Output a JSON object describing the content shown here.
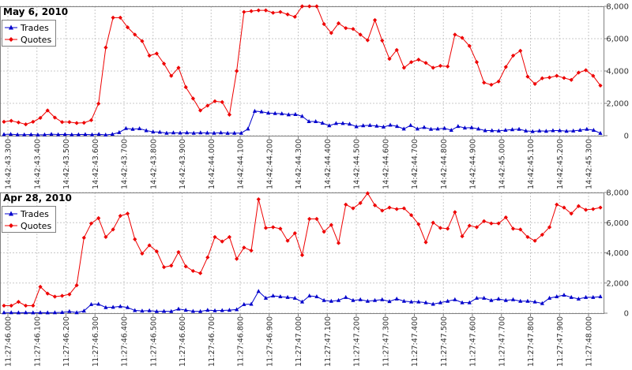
{
  "chart_data": [
    {
      "type": "line",
      "title": "May 6, 2010",
      "xlabel": "",
      "ylabel": "",
      "ylim": [
        0,
        8000
      ],
      "yticks": [
        0,
        2000,
        4000,
        6000,
        8000
      ],
      "ytick_labels": [
        "0",
        "2,000",
        "4,000",
        "6,000",
        "8,000"
      ],
      "xtick_labels": [
        "14:42:43.300",
        "14:42:43.400",
        "14:42:43.500",
        "14:42:43.600",
        "14:42:43.700",
        "14:42:43.800",
        "14:42:43.900",
        "14:42:44.000",
        "14:42:44.100",
        "14:42:44.200",
        "14:42:44.300",
        "14:42:44.400",
        "14:42:44.500",
        "14:42:44.600",
        "14:42:44.700",
        "14:42:44.800",
        "14:42:44.900",
        "14:42:45.000",
        "14:42:45.100",
        "14:42:45.200",
        "14:42:45.300"
      ],
      "grid": true,
      "legend": "top-left",
      "series": [
        {
          "name": "Trades",
          "color": "#0000cc",
          "marker": "triangle",
          "values": [
            80,
            90,
            60,
            60,
            70,
            50,
            60,
            90,
            70,
            80,
            60,
            70,
            80,
            60,
            90,
            50,
            90,
            200,
            450,
            400,
            440,
            320,
            240,
            220,
            160,
            180,
            170,
            180,
            160,
            180,
            170,
            160,
            180,
            150,
            160,
            160,
            420,
            1520,
            1480,
            1400,
            1380,
            1360,
            1300,
            1320,
            1200,
            880,
            880,
            780,
            620,
            760,
            760,
            720,
            560,
            620,
            640,
            600,
            540,
            660,
            580,
            420,
            640,
            420,
            520,
            400,
            420,
            460,
            340,
            580,
            480,
            500,
            420,
            320,
            320,
            300,
            340,
            380,
            400,
            300,
            260,
            300,
            280,
            320,
            320,
            280,
            300,
            340,
            400,
            340,
            150
          ]
        },
        {
          "name": "Quotes",
          "color": "#ee0000",
          "marker": "diamond",
          "values": [
            860,
            920,
            820,
            700,
            860,
            1100,
            1560,
            1120,
            840,
            840,
            780,
            800,
            960,
            1980,
            5450,
            7300,
            7300,
            6700,
            6250,
            5850,
            4950,
            5080,
            4450,
            3700,
            4200,
            3000,
            2300,
            1560,
            1860,
            2130,
            2080,
            1300,
            4000,
            7650,
            7700,
            7750,
            7750,
            7600,
            7650,
            7500,
            7350,
            8000,
            8000,
            8000,
            6900,
            6350,
            6950,
            6650,
            6600,
            6250,
            5900,
            7150,
            5880,
            4750,
            5300,
            4200,
            4550,
            4700,
            4500,
            4200,
            4320,
            4280,
            6250,
            6050,
            5550,
            4550,
            3280,
            3150,
            3350,
            4250,
            4950,
            5250,
            3650,
            3200,
            3550,
            3600,
            3700,
            3570,
            3450,
            3900,
            4050,
            3700,
            3100
          ]
        }
      ]
    },
    {
      "type": "line",
      "title": "Apr 28, 2010",
      "xlabel": "",
      "ylabel": "",
      "ylim": [
        0,
        8000
      ],
      "yticks": [
        0,
        2000,
        4000,
        6000,
        8000
      ],
      "ytick_labels": [
        "0",
        "2,000",
        "4,000",
        "6,000",
        "8,000"
      ],
      "xtick_labels": [
        "11:27:46.000",
        "11:27:46.100",
        "11:27:46.200",
        "11:27:46.300",
        "11:27:46.400",
        "11:27:46.500",
        "11:27:46.600",
        "11:27:46.700",
        "11:27:46.800",
        "11:27:46.900",
        "11:27:47.000",
        "11:27:47.100",
        "11:27:47.200",
        "11:27:47.300",
        "11:27:47.400",
        "11:27:47.500",
        "11:27:47.600",
        "11:27:47.700",
        "11:27:47.800",
        "11:27:47.900",
        "11:27:48.000"
      ],
      "grid": true,
      "legend": "top-left",
      "series": [
        {
          "name": "Trades",
          "color": "#0000cc",
          "marker": "triangle",
          "values": [
            40,
            40,
            30,
            40,
            30,
            40,
            30,
            40,
            50,
            120,
            40,
            150,
            580,
            600,
            380,
            400,
            450,
            380,
            180,
            150,
            170,
            120,
            130,
            120,
            280,
            200,
            130,
            120,
            200,
            170,
            180,
            200,
            240,
            580,
            600,
            1450,
            1000,
            1150,
            1100,
            1050,
            1000,
            750,
            1150,
            1100,
            850,
            800,
            850,
            1050,
            850,
            900,
            800,
            850,
            900,
            780,
            950,
            800,
            750,
            750,
            700,
            600,
            700,
            800,
            900,
            700,
            700,
            1000,
            1000,
            850,
            950,
            850,
            900,
            800,
            800,
            750,
            650,
            1000,
            1100,
            1200,
            1050,
            950,
            1050,
            1050,
            1100
          ]
        },
        {
          "name": "Quotes",
          "color": "#ee0000",
          "marker": "diamond",
          "values": [
            500,
            500,
            750,
            500,
            500,
            1750,
            1300,
            1100,
            1150,
            1250,
            1850,
            5000,
            5950,
            6300,
            5050,
            5550,
            6450,
            6600,
            4900,
            3950,
            4500,
            4100,
            3050,
            3150,
            4050,
            3100,
            2800,
            2650,
            3700,
            5050,
            4750,
            5050,
            3600,
            4350,
            4150,
            7550,
            5650,
            5700,
            5600,
            4800,
            5300,
            3850,
            6250,
            6250,
            5400,
            5850,
            4650,
            7200,
            6950,
            7300,
            7950,
            7150,
            6800,
            7000,
            6900,
            6950,
            6500,
            5900,
            4700,
            6000,
            5650,
            5600,
            6700,
            5100,
            5800,
            5700,
            6100,
            5950,
            5950,
            6350,
            5600,
            5550,
            5050,
            4800,
            5200,
            5700,
            7200,
            7000,
            6600,
            7100,
            6850,
            6900,
            7000
          ]
        }
      ]
    }
  ]
}
